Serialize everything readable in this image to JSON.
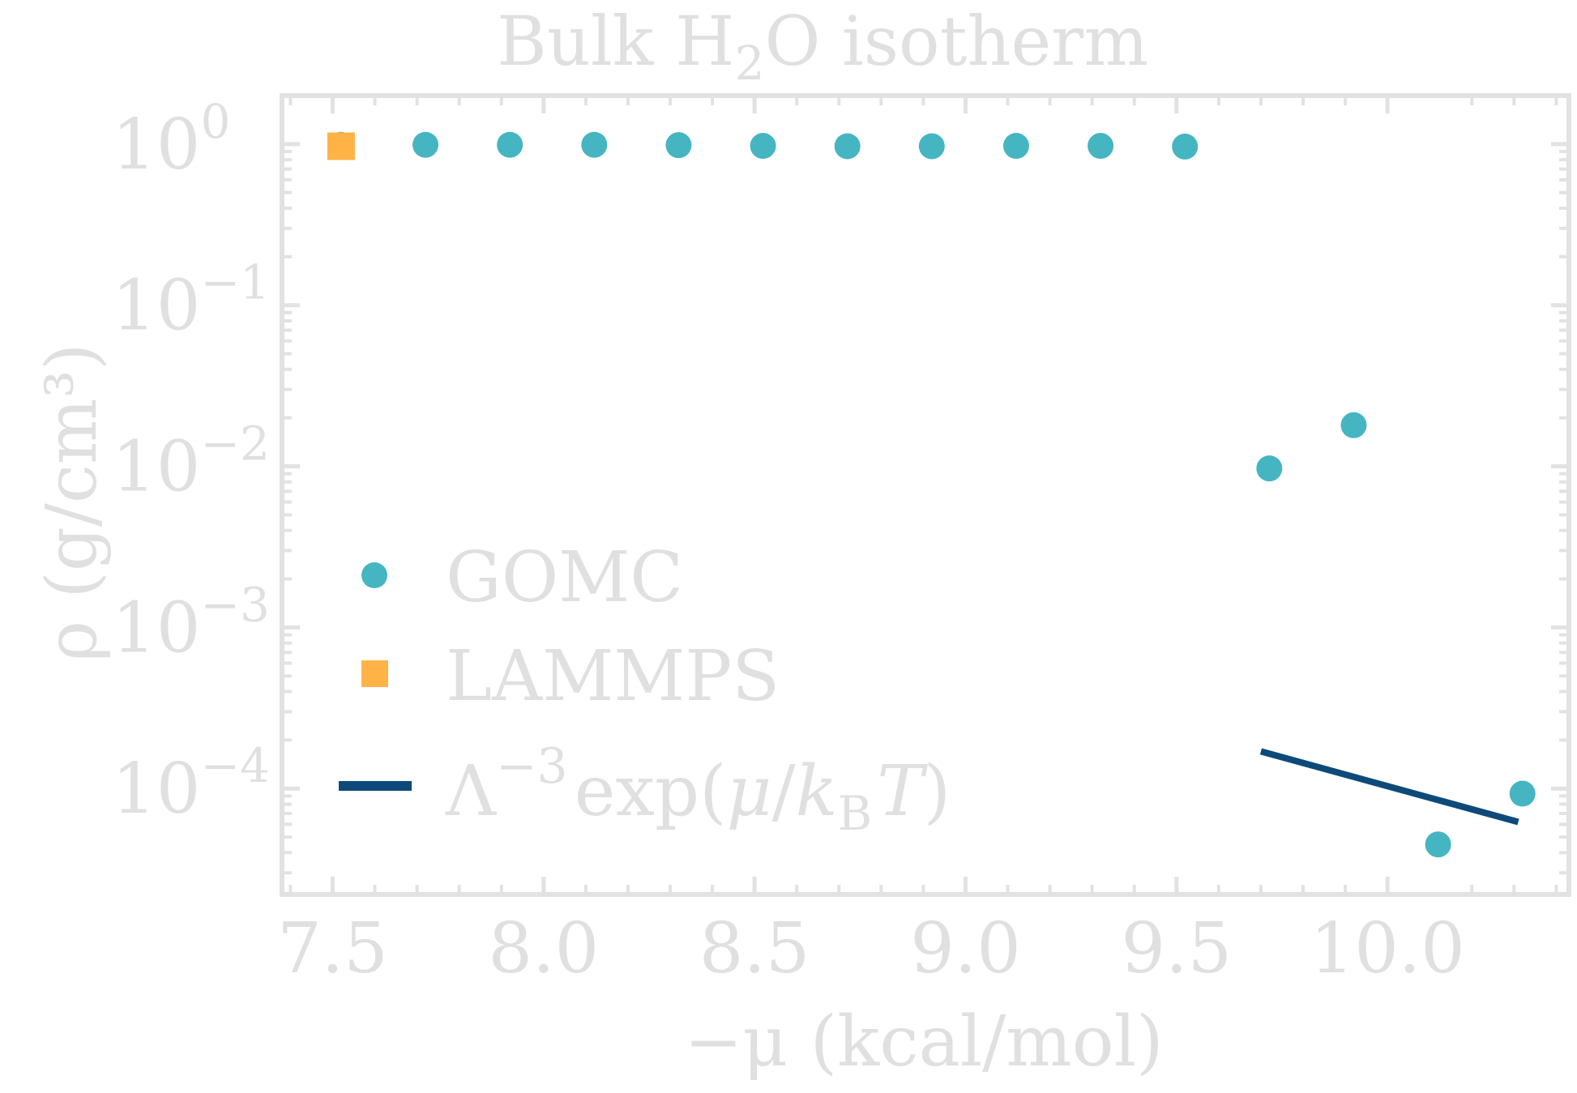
{
  "chart_data": {
    "type": "scatter",
    "title_main": "Bulk H",
    "title_sub": "2",
    "title_end": "O isotherm",
    "xlabel": "−μ (kcal/mol)",
    "ylabel": "ρ (g/cm³)",
    "xlim": [
      7.38,
      10.43
    ],
    "ylim": [
      2.2e-05,
      2.0
    ],
    "yscale": "log",
    "xticks": [
      7.5,
      8.0,
      8.5,
      9.0,
      9.5,
      10.0
    ],
    "xtick_labels": [
      "7.5",
      "8.0",
      "8.5",
      "9.0",
      "9.5",
      "10.0"
    ],
    "yticks": [
      {
        "value": 0.0001,
        "base": "10",
        "exp": "−4"
      },
      {
        "value": 0.001,
        "base": "10",
        "exp": "−3"
      },
      {
        "value": 0.01,
        "base": "10",
        "exp": "−2"
      },
      {
        "value": 0.1,
        "base": "10",
        "exp": "−1"
      },
      {
        "value": 1,
        "base": "10",
        "exp": "0"
      }
    ],
    "grid": false,
    "legend_placement": "center-left",
    "series": [
      {
        "name": "GOMC",
        "kind": "circle",
        "color": "#46b5c2",
        "x": [
          7.52,
          7.72,
          7.92,
          8.12,
          8.32,
          8.52,
          8.72,
          8.92,
          9.12,
          9.32,
          9.52,
          9.72,
          9.92,
          10.12,
          10.32
        ],
        "y": [
          0.99,
          0.99,
          0.99,
          0.99,
          0.985,
          0.975,
          0.97,
          0.97,
          0.975,
          0.975,
          0.965,
          0.0097,
          0.018,
          4.5e-05,
          9.3e-05
        ]
      },
      {
        "name": "LAMMPS",
        "kind": "square",
        "color": "#ffb347",
        "x": [
          7.52
        ],
        "y": [
          0.97
        ]
      },
      {
        "name": "Λ⁻³ exp(μ/k_B T)",
        "kind": "line",
        "color": "#0d4a7a",
        "x": [
          9.7,
          10.31
        ],
        "y": [
          0.00017,
          6.2e-05
        ]
      }
    ],
    "legend_labels": {
      "gomc": "GOMC",
      "lammps": "LAMMPS",
      "line_lambda": "Λ",
      "line_exp": "−3",
      "line_mid": "exp(",
      "line_mu": "μ",
      "line_slash": "/",
      "line_k": "k",
      "line_b": "B",
      "line_t": "T",
      "line_close": ")"
    }
  }
}
